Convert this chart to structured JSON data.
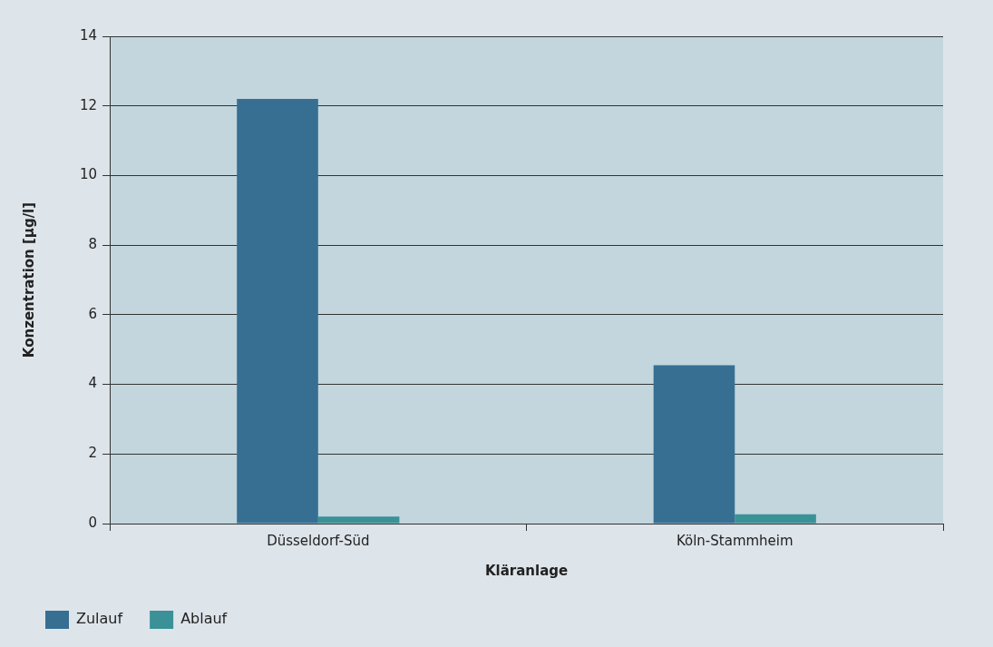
{
  "chart_data": {
    "type": "bar",
    "xlabel": "Kläranlage",
    "ylabel": "Konzentration [µg/l]",
    "categories": [
      "Düsseldorf-Süd",
      "Köln-Stammheim"
    ],
    "series": [
      {
        "name": "Zulauf",
        "color": "#376f93",
        "values": [
          12.2,
          4.55
        ]
      },
      {
        "name": "Ablauf",
        "color": "#3a9197",
        "values": [
          0.2,
          0.27
        ]
      }
    ],
    "ylim": [
      0,
      14
    ],
    "yticks": [
      0,
      2,
      4,
      6,
      8,
      10,
      12,
      14
    ],
    "grid": "y",
    "legend": "bottom"
  }
}
